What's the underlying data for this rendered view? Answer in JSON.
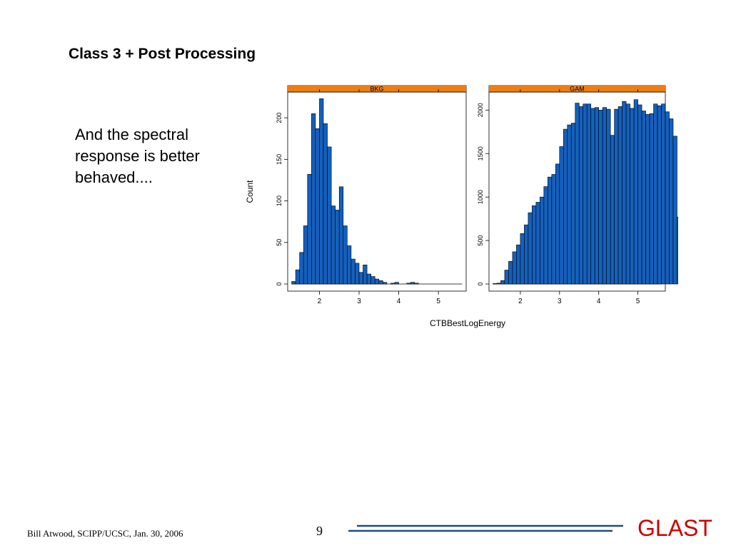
{
  "slide": {
    "title": "Class 3 + Post Processing",
    "body_lines": [
      "And the spectral",
      "response is better",
      "behaved...."
    ],
    "footer": "Bill Atwood,  SCIPP/UCSC, Jan. 30, 2006",
    "page_number": "9",
    "logo": "GLAST"
  },
  "colors": {
    "bar_fill": "#1560bd",
    "strip_active": "#f07d0f",
    "strip_bg": "#ffdca0",
    "logo": "#cc0000",
    "footer_line": "#1f4e79"
  },
  "chart_data": [
    {
      "type": "bar",
      "panel": "BKG",
      "xlabel": "CTBBestLogEnergy",
      "ylabel": "Count",
      "xlim": [
        1.2,
        5.7
      ],
      "ylim": [
        0,
        225
      ],
      "x_ticks": [
        2,
        3,
        4,
        5
      ],
      "y_ticks": [
        0,
        50,
        100,
        150,
        200
      ],
      "bin_start": 1.3,
      "bin_width": 0.1,
      "values": [
        3,
        17,
        38,
        70,
        132,
        205,
        187,
        223,
        193,
        165,
        94,
        89,
        117,
        70,
        46,
        30,
        25,
        14,
        23,
        12,
        9,
        6,
        4,
        2,
        0,
        1,
        2,
        0,
        0,
        1,
        2,
        1,
        0,
        0,
        0,
        0,
        0,
        0,
        0,
        0,
        0,
        0,
        0
      ],
      "grid": false
    },
    {
      "type": "bar",
      "panel": "GAM",
      "xlabel": "CTBBestLogEnergy",
      "ylabel": "",
      "xlim": [
        1.2,
        5.7
      ],
      "ylim": [
        0,
        2150
      ],
      "x_ticks": [
        2,
        3,
        4,
        5
      ],
      "y_ticks": [
        0,
        500,
        1000,
        1500,
        2000
      ],
      "bin_start": 1.3,
      "bin_width": 0.1,
      "values": [
        5,
        10,
        40,
        160,
        260,
        370,
        450,
        580,
        680,
        820,
        900,
        940,
        1000,
        1120,
        1230,
        1260,
        1380,
        1580,
        1780,
        1830,
        1850,
        2080,
        2040,
        2070,
        2070,
        2020,
        2030,
        2000,
        2030,
        2010,
        1710,
        2010,
        2040,
        2100,
        2070,
        2020,
        2120,
        2060,
        1990,
        1950,
        1960,
        2070,
        2050,
        2070,
        1980,
        1900,
        1700,
        770,
        40
      ],
      "grid": false
    }
  ]
}
